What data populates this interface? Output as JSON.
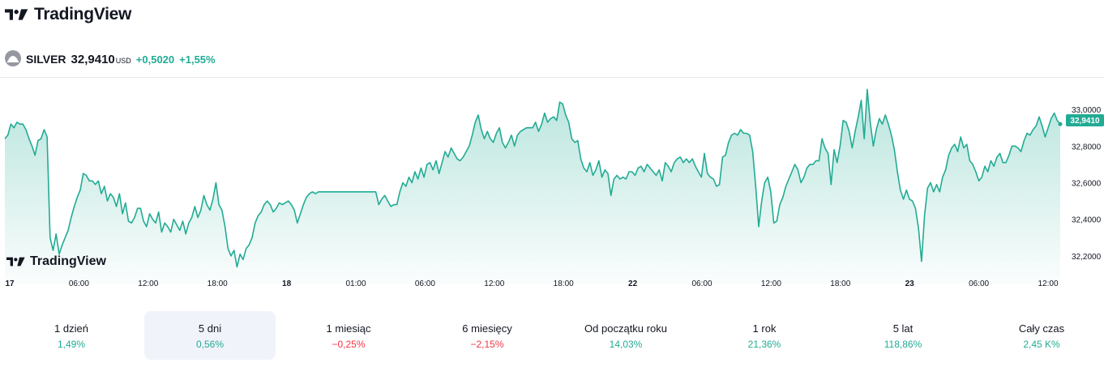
{
  "brand": {
    "name": "TradingView"
  },
  "symbol": {
    "name": "SILVER",
    "price": "32,9410",
    "currency": "USD",
    "change_abs": "+0,5020",
    "change_pct": "+1,55%"
  },
  "watermark": {
    "name": "TradingView"
  },
  "colors": {
    "line": "#22ab94",
    "positive": "#22ab94",
    "negative": "#f23645",
    "active_period_bg": "#f0f3fa"
  },
  "chart_data": {
    "type": "area",
    "ylim": [
      32.12,
      33.12
    ],
    "y_ticks": [
      "33,0000",
      "32,8000",
      "32,6000",
      "32,4000",
      "32,2000"
    ],
    "y_tick_values": [
      33.0,
      32.8,
      32.6,
      32.4,
      32.2
    ],
    "x_ticks": [
      "17",
      "06:00",
      "12:00",
      "18:00",
      "18",
      "01:00",
      "06:00",
      "12:00",
      "18:00",
      "22",
      "06:00",
      "12:00",
      "18:00",
      "23",
      "06:00",
      "12:00"
    ],
    "x_tick_bold": [
      true,
      false,
      false,
      false,
      true,
      false,
      false,
      false,
      false,
      true,
      false,
      false,
      false,
      true,
      false,
      false
    ],
    "last_value_label": "32,9410",
    "last_value": 32.941,
    "grid": false,
    "series": [
      {
        "values": [
          32.84,
          32.86,
          32.92,
          32.9,
          32.93,
          32.92,
          32.92,
          32.89,
          32.84,
          32.8,
          32.75,
          32.83,
          32.84,
          32.89,
          32.85,
          32.3,
          32.23,
          32.32,
          32.21,
          32.26,
          32.3,
          32.34,
          32.41,
          32.47,
          32.52,
          32.56,
          32.65,
          32.64,
          32.61,
          32.61,
          32.59,
          32.61,
          32.54,
          32.58,
          32.5,
          32.54,
          32.52,
          32.47,
          32.54,
          32.43,
          32.49,
          32.39,
          32.38,
          32.41,
          32.46,
          32.46,
          32.39,
          32.36,
          32.43,
          32.4,
          32.38,
          32.44,
          32.33,
          32.38,
          32.36,
          32.33,
          32.4,
          32.37,
          32.34,
          32.39,
          32.32,
          32.38,
          32.41,
          32.47,
          32.41,
          32.45,
          32.53,
          32.48,
          32.45,
          32.51,
          32.6,
          32.48,
          32.45,
          32.36,
          32.24,
          32.2,
          32.23,
          32.14,
          32.21,
          32.18,
          32.24,
          32.26,
          32.3,
          32.38,
          32.42,
          32.44,
          32.48,
          32.5,
          32.48,
          32.44,
          32.46,
          32.49,
          32.48,
          32.49,
          32.5,
          32.48,
          32.45,
          32.38,
          32.43,
          32.48,
          32.52,
          32.54,
          32.55,
          32.54,
          32.55,
          32.55,
          32.55,
          32.55,
          32.55,
          32.55,
          32.55,
          32.55,
          32.55,
          32.55,
          32.55,
          32.55,
          32.55,
          32.55,
          32.55,
          32.55,
          32.55,
          32.55,
          32.55,
          32.55,
          32.48,
          32.51,
          32.53,
          32.5,
          32.47,
          32.48,
          32.48,
          32.55,
          32.6,
          32.58,
          32.63,
          32.6,
          32.66,
          32.62,
          32.68,
          32.63,
          32.7,
          32.71,
          32.67,
          32.72,
          32.65,
          32.71,
          32.77,
          32.74,
          32.79,
          32.76,
          32.73,
          32.72,
          32.74,
          32.77,
          32.8,
          32.86,
          32.93,
          32.97,
          32.89,
          32.84,
          32.88,
          32.84,
          32.82,
          32.87,
          32.9,
          32.82,
          32.79,
          32.82,
          32.86,
          32.8,
          32.86,
          32.88,
          32.89,
          32.9,
          32.9,
          32.9,
          32.93,
          32.88,
          32.92,
          32.98,
          32.93,
          32.95,
          32.96,
          32.94,
          33.04,
          33.03,
          32.97,
          32.93,
          32.84,
          32.82,
          32.83,
          32.73,
          32.68,
          32.66,
          32.71,
          32.64,
          32.67,
          32.72,
          32.63,
          32.67,
          32.65,
          32.53,
          32.62,
          32.64,
          32.62,
          32.63,
          32.62,
          32.66,
          32.66,
          32.64,
          32.68,
          32.69,
          32.66,
          32.7,
          32.68,
          32.66,
          32.64,
          32.67,
          32.61,
          32.71,
          32.69,
          32.66,
          32.71,
          32.73,
          32.74,
          32.71,
          32.73,
          32.71,
          32.73,
          32.69,
          32.66,
          32.63,
          32.76,
          32.65,
          32.63,
          32.62,
          32.58,
          32.59,
          32.74,
          32.75,
          32.82,
          32.86,
          32.87,
          32.86,
          32.89,
          32.87,
          32.87,
          32.86,
          32.77,
          32.58,
          32.36,
          32.5,
          32.6,
          32.63,
          32.55,
          32.38,
          32.39,
          32.48,
          32.52,
          32.58,
          32.62,
          32.66,
          32.7,
          32.67,
          32.6,
          32.63,
          32.68,
          32.7,
          32.7,
          32.72,
          32.72,
          32.84,
          32.79,
          32.76,
          32.59,
          32.78,
          32.71,
          32.8,
          32.94,
          32.93,
          32.88,
          32.79,
          32.88,
          32.96,
          33.05,
          32.84,
          33.11,
          32.93,
          32.8,
          32.89,
          32.95,
          32.92,
          32.97,
          32.92,
          32.86,
          32.78,
          32.66,
          32.56,
          32.51,
          32.56,
          32.51,
          32.5,
          32.46,
          32.35,
          32.17,
          32.42,
          32.57,
          32.6,
          32.55,
          32.59,
          32.55,
          32.63,
          32.67,
          32.75,
          32.79,
          32.81,
          32.77,
          32.85,
          32.79,
          32.81,
          32.72,
          32.7,
          32.66,
          32.61,
          32.63,
          32.69,
          32.66,
          32.72,
          32.69,
          32.74,
          32.76,
          32.71,
          32.71,
          32.75,
          32.8,
          32.8,
          32.79,
          32.77,
          32.83,
          32.87,
          32.86,
          32.89,
          32.91,
          32.96,
          32.91,
          32.85,
          32.9,
          32.95,
          32.98,
          32.94,
          32.92
        ]
      }
    ]
  },
  "periods": [
    {
      "label": "1 dzień",
      "value": "1,49%",
      "sign": "pos",
      "active": false
    },
    {
      "label": "5 dni",
      "value": "0,56%",
      "sign": "pos",
      "active": true
    },
    {
      "label": "1 miesiąc",
      "value": "−0,25%",
      "sign": "neg",
      "active": false
    },
    {
      "label": "6 miesięcy",
      "value": "−2,15%",
      "sign": "neg",
      "active": false
    },
    {
      "label": "Od początku roku",
      "value": "14,03%",
      "sign": "pos",
      "active": false
    },
    {
      "label": "1 rok",
      "value": "21,36%",
      "sign": "pos",
      "active": false
    },
    {
      "label": "5 lat",
      "value": "118,86%",
      "sign": "pos",
      "active": false
    },
    {
      "label": "Cały czas",
      "value": "2,45 K%",
      "sign": "pos",
      "active": false
    }
  ]
}
